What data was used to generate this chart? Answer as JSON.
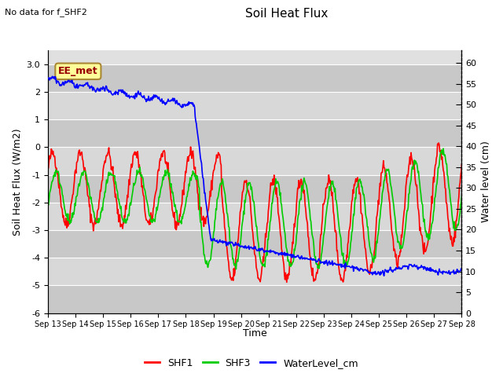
{
  "title": "Soil Heat Flux",
  "subtitle": "No data for f_SHF2",
  "ylabel_left": "Soil Heat Flux (W/m2)",
  "ylabel_right": "Water level (cm)",
  "xlabel": "Time",
  "ylim_left": [
    -6.0,
    3.5
  ],
  "ylim_right": [
    0,
    63
  ],
  "annotation": "EE_met",
  "x_ticks": [
    "Sep 13",
    "Sep 14",
    "Sep 15",
    "Sep 16",
    "Sep 17",
    "Sep 18",
    "Sep 19",
    "Sep 20",
    "Sep 21",
    "Sep 22",
    "Sep 23",
    "Sep 24",
    "Sep 25",
    "Sep 26",
    "Sep 27",
    "Sep 28"
  ],
  "yticks_left": [
    -6,
    -5,
    -4,
    -3,
    -2,
    -1,
    0,
    1,
    2,
    3
  ],
  "yticks_right": [
    0,
    5,
    10,
    15,
    20,
    25,
    30,
    35,
    40,
    45,
    50,
    55,
    60
  ],
  "shf1_color": "#ff0000",
  "shf3_color": "#00cc00",
  "water_color": "#0000ff",
  "line_width": 1.2
}
